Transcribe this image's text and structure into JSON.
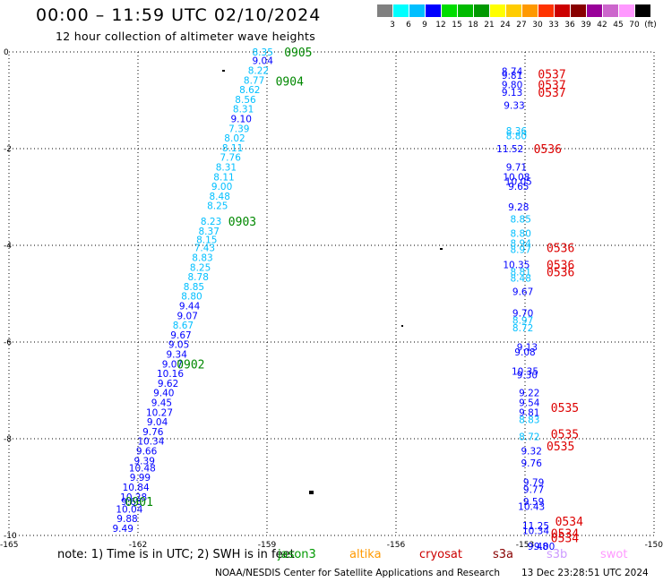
{
  "header": {
    "title": "00:00 – 11:59 UTC 02/10/2024",
    "subtitle": "12 hour collection of altimeter wave heights"
  },
  "legend": {
    "colors": [
      "#808080",
      "#00ffff",
      "#00bfff",
      "#0000ff",
      "#00dd00",
      "#00bb00",
      "#009900",
      "#ffff00",
      "#ffcc00",
      "#ff9900",
      "#ff3300",
      "#cc0000",
      "#880000",
      "#990099",
      "#cc66cc",
      "#ff99ff",
      "#000000"
    ],
    "labels": [
      "3",
      "6",
      "9",
      "12",
      "15",
      "18",
      "21",
      "24",
      "27",
      "30",
      "33",
      "36",
      "39",
      "42",
      "45",
      "70",
      "(ft)"
    ]
  },
  "axes": {
    "lon_ticks": [
      "-165",
      "-162",
      "-159",
      "-156",
      "-153",
      "-150"
    ],
    "lat_ticks": [
      "0",
      "-2",
      "-4",
      "-6",
      "-8",
      "-10"
    ]
  },
  "chart_data": {
    "type": "scatter",
    "x_range": [
      -165,
      -150
    ],
    "y_range": [
      -10,
      0
    ],
    "passes": [
      {
        "label": "0905",
        "lon": -158.6,
        "lat": 0.0
      },
      {
        "label": "0904",
        "lon": -158.8,
        "lat": -0.6
      },
      {
        "label": "0903",
        "lon": -159.9,
        "lat": -3.5
      },
      {
        "label": "0902",
        "lon": -161.1,
        "lat": -6.45
      },
      {
        "label": "0901",
        "lon": -162.3,
        "lat": -9.3
      },
      {
        "label": "0537",
        "lon": -152.7,
        "lat": -0.45
      },
      {
        "label": "0537",
        "lon": -152.7,
        "lat": -0.68
      },
      {
        "label": "0537",
        "lon": -152.7,
        "lat": -0.83
      },
      {
        "label": "0536",
        "lon": -152.8,
        "lat": -2.0
      },
      {
        "label": "0536",
        "lon": -152.5,
        "lat": -4.05
      },
      {
        "label": "0536",
        "lon": -152.5,
        "lat": -4.4
      },
      {
        "label": "0536",
        "lon": -152.5,
        "lat": -4.55
      },
      {
        "label": "0535",
        "lon": -152.4,
        "lat": -7.35
      },
      {
        "label": "0535",
        "lon": -152.4,
        "lat": -7.9
      },
      {
        "label": "0535",
        "lon": -152.5,
        "lat": -8.15
      },
      {
        "label": "0534",
        "lon": -152.3,
        "lat": -9.7
      },
      {
        "label": "0534",
        "lon": -152.4,
        "lat": -9.95
      },
      {
        "label": "0534",
        "lon": -152.4,
        "lat": -10.05
      }
    ],
    "swh": [
      {
        "v": "8.35",
        "lon": -159.1,
        "lat": 0.0,
        "c": "#00bfff"
      },
      {
        "v": "9.04",
        "lon": -159.1,
        "lat": -0.18,
        "c": "#0000ff"
      },
      {
        "v": "8.22",
        "lon": -159.2,
        "lat": -0.38,
        "c": "#00bfff"
      },
      {
        "v": "8.77",
        "lon": -159.3,
        "lat": -0.58,
        "c": "#00bfff"
      },
      {
        "v": "8.62",
        "lon": -159.4,
        "lat": -0.78,
        "c": "#00bfff"
      },
      {
        "v": "8.56",
        "lon": -159.5,
        "lat": -0.98,
        "c": "#00bfff"
      },
      {
        "v": "8.31",
        "lon": -159.55,
        "lat": -1.18,
        "c": "#00bfff"
      },
      {
        "v": "9.10",
        "lon": -159.6,
        "lat": -1.38,
        "c": "#0000ff"
      },
      {
        "v": "7.39",
        "lon": -159.65,
        "lat": -1.58,
        "c": "#00bfff"
      },
      {
        "v": "8.02",
        "lon": -159.75,
        "lat": -1.78,
        "c": "#00bfff"
      },
      {
        "v": "8.11",
        "lon": -159.8,
        "lat": -1.98,
        "c": "#00bfff"
      },
      {
        "v": "7.76",
        "lon": -159.85,
        "lat": -2.18,
        "c": "#00bfff"
      },
      {
        "v": "8.31",
        "lon": -159.95,
        "lat": -2.38,
        "c": "#00bfff"
      },
      {
        "v": "8.11",
        "lon": -160.0,
        "lat": -2.58,
        "c": "#00bfff"
      },
      {
        "v": "9.00",
        "lon": -160.05,
        "lat": -2.78,
        "c": "#00bfff"
      },
      {
        "v": "8.48",
        "lon": -160.1,
        "lat": -2.98,
        "c": "#00bfff"
      },
      {
        "v": "8.25",
        "lon": -160.15,
        "lat": -3.18,
        "c": "#00bfff"
      },
      {
        "v": "8.23",
        "lon": -160.3,
        "lat": -3.5,
        "c": "#00bfff"
      },
      {
        "v": "8.37",
        "lon": -160.35,
        "lat": -3.7,
        "c": "#00bfff"
      },
      {
        "v": "8.15",
        "lon": -160.4,
        "lat": -3.88,
        "c": "#00bfff"
      },
      {
        "v": "7.43",
        "lon": -160.45,
        "lat": -4.05,
        "c": "#00bfff"
      },
      {
        "v": "8.83",
        "lon": -160.5,
        "lat": -4.25,
        "c": "#00bfff"
      },
      {
        "v": "8.25",
        "lon": -160.55,
        "lat": -4.45,
        "c": "#00bfff"
      },
      {
        "v": "8.78",
        "lon": -160.6,
        "lat": -4.65,
        "c": "#00bfff"
      },
      {
        "v": "8.85",
        "lon": -160.7,
        "lat": -4.85,
        "c": "#00bfff"
      },
      {
        "v": "8.80",
        "lon": -160.75,
        "lat": -5.05,
        "c": "#00bfff"
      },
      {
        "v": "9.44",
        "lon": -160.8,
        "lat": -5.25,
        "c": "#0000ff"
      },
      {
        "v": "9.07",
        "lon": -160.85,
        "lat": -5.45,
        "c": "#0000ff"
      },
      {
        "v": "8.67",
        "lon": -160.95,
        "lat": -5.65,
        "c": "#00bfff"
      },
      {
        "v": "9.67",
        "lon": -161.0,
        "lat": -5.85,
        "c": "#0000ff"
      },
      {
        "v": "9.05",
        "lon": -161.05,
        "lat": -6.05,
        "c": "#0000ff"
      },
      {
        "v": "9.34",
        "lon": -161.1,
        "lat": -6.25,
        "c": "#0000ff"
      },
      {
        "v": "9.07",
        "lon": -161.2,
        "lat": -6.45,
        "c": "#0000ff"
      },
      {
        "v": "10.16",
        "lon": -161.25,
        "lat": -6.65,
        "c": "#0000ff"
      },
      {
        "v": "9.62",
        "lon": -161.3,
        "lat": -6.85,
        "c": "#0000ff"
      },
      {
        "v": "9.40",
        "lon": -161.4,
        "lat": -7.05,
        "c": "#0000ff"
      },
      {
        "v": "9.45",
        "lon": -161.45,
        "lat": -7.25,
        "c": "#0000ff"
      },
      {
        "v": "10.27",
        "lon": -161.5,
        "lat": -7.45,
        "c": "#0000ff"
      },
      {
        "v": "9.04",
        "lon": -161.55,
        "lat": -7.65,
        "c": "#0000ff"
      },
      {
        "v": "9.76",
        "lon": -161.65,
        "lat": -7.85,
        "c": "#0000ff"
      },
      {
        "v": "10.34",
        "lon": -161.7,
        "lat": -8.05,
        "c": "#0000ff"
      },
      {
        "v": "9.66",
        "lon": -161.8,
        "lat": -8.25,
        "c": "#0000ff"
      },
      {
        "v": "9.39",
        "lon": -161.85,
        "lat": -8.45,
        "c": "#0000ff"
      },
      {
        "v": "10.48",
        "lon": -161.9,
        "lat": -8.6,
        "c": "#0000ff"
      },
      {
        "v": "9.99",
        "lon": -161.95,
        "lat": -8.8,
        "c": "#0000ff"
      },
      {
        "v": "10.84",
        "lon": -162.05,
        "lat": -9.0,
        "c": "#0000ff"
      },
      {
        "v": "10.28",
        "lon": -162.1,
        "lat": -9.2,
        "c": "#0000ff"
      },
      {
        "v": "9.63",
        "lon": -162.15,
        "lat": -9.3,
        "c": "#0000ff"
      },
      {
        "v": "10.04",
        "lon": -162.2,
        "lat": -9.45,
        "c": "#0000ff"
      },
      {
        "v": "9.88",
        "lon": -162.25,
        "lat": -9.65,
        "c": "#0000ff"
      },
      {
        "v": "9.49",
        "lon": -162.35,
        "lat": -9.85,
        "c": "#0000ff"
      },
      {
        "v": "8.74",
        "lon": -153.3,
        "lat": -0.4,
        "c": "#0000ff"
      },
      {
        "v": "9.81",
        "lon": -153.3,
        "lat": -0.48,
        "c": "#0000ff"
      },
      {
        "v": "9.80",
        "lon": -153.3,
        "lat": -0.68,
        "c": "#0000ff"
      },
      {
        "v": "9.13",
        "lon": -153.3,
        "lat": -0.83,
        "c": "#0000ff"
      },
      {
        "v": "9.33",
        "lon": -153.25,
        "lat": -1.1,
        "c": "#0000ff"
      },
      {
        "v": "8.36",
        "lon": -153.2,
        "lat": -1.63,
        "c": "#00bfff"
      },
      {
        "v": "8.80",
        "lon": -153.2,
        "lat": -1.73,
        "c": "#00bfff"
      },
      {
        "v": "11.52",
        "lon": -153.35,
        "lat": -2.0,
        "c": "#0000ff"
      },
      {
        "v": "9.71",
        "lon": -153.2,
        "lat": -2.38,
        "c": "#0000ff"
      },
      {
        "v": "10.08",
        "lon": -153.2,
        "lat": -2.58,
        "c": "#0000ff"
      },
      {
        "v": "10.05",
        "lon": -153.15,
        "lat": -2.68,
        "c": "#0000ff"
      },
      {
        "v": "9.65",
        "lon": -153.15,
        "lat": -2.78,
        "c": "#0000ff"
      },
      {
        "v": "9.28",
        "lon": -153.15,
        "lat": -3.2,
        "c": "#0000ff"
      },
      {
        "v": "8.85",
        "lon": -153.1,
        "lat": -3.45,
        "c": "#00bfff"
      },
      {
        "v": "8.80",
        "lon": -153.1,
        "lat": -3.75,
        "c": "#00bfff"
      },
      {
        "v": "8.94",
        "lon": -153.1,
        "lat": -3.95,
        "c": "#00bfff"
      },
      {
        "v": "8.97",
        "lon": -153.1,
        "lat": -4.08,
        "c": "#00bfff"
      },
      {
        "v": "10.35",
        "lon": -153.2,
        "lat": -4.4,
        "c": "#0000ff"
      },
      {
        "v": "8.81",
        "lon": -153.1,
        "lat": -4.55,
        "c": "#00bfff"
      },
      {
        "v": "8.48",
        "lon": -153.1,
        "lat": -4.68,
        "c": "#00bfff"
      },
      {
        "v": "9.67",
        "lon": -153.05,
        "lat": -4.95,
        "c": "#0000ff"
      },
      {
        "v": "9.70",
        "lon": -153.05,
        "lat": -5.4,
        "c": "#0000ff"
      },
      {
        "v": "8.97",
        "lon": -153.05,
        "lat": -5.55,
        "c": "#00bfff"
      },
      {
        "v": "8.72",
        "lon": -153.05,
        "lat": -5.7,
        "c": "#00bfff"
      },
      {
        "v": "9.13",
        "lon": -152.95,
        "lat": -6.1,
        "c": "#0000ff"
      },
      {
        "v": "9.08",
        "lon": -153.0,
        "lat": -6.2,
        "c": "#0000ff"
      },
      {
        "v": "10.35",
        "lon": -153.0,
        "lat": -6.6,
        "c": "#0000ff"
      },
      {
        "v": "9.30",
        "lon": -152.95,
        "lat": -6.68,
        "c": "#0000ff"
      },
      {
        "v": "9.22",
        "lon": -152.9,
        "lat": -7.05,
        "c": "#0000ff"
      },
      {
        "v": "9.54",
        "lon": -152.9,
        "lat": -7.25,
        "c": "#0000ff"
      },
      {
        "v": "9.81",
        "lon": -152.9,
        "lat": -7.45,
        "c": "#0000ff"
      },
      {
        "v": "8.83",
        "lon": -152.9,
        "lat": -7.6,
        "c": "#00bfff"
      },
      {
        "v": "8.72",
        "lon": -152.9,
        "lat": -7.95,
        "c": "#00bfff"
      },
      {
        "v": "9.32",
        "lon": -152.85,
        "lat": -8.25,
        "c": "#0000ff"
      },
      {
        "v": "9.76",
        "lon": -152.85,
        "lat": -8.5,
        "c": "#0000ff"
      },
      {
        "v": "9.79",
        "lon": -152.8,
        "lat": -8.9,
        "c": "#0000ff"
      },
      {
        "v": "9.77",
        "lon": -152.8,
        "lat": -9.05,
        "c": "#0000ff"
      },
      {
        "v": "9.59",
        "lon": -152.8,
        "lat": -9.3,
        "c": "#0000ff"
      },
      {
        "v": "10.43",
        "lon": -152.85,
        "lat": -9.4,
        "c": "#0000ff"
      },
      {
        "v": "11.25",
        "lon": -152.75,
        "lat": -9.8,
        "c": "#0000ff"
      },
      {
        "v": "10.34",
        "lon": -152.75,
        "lat": -9.9,
        "c": "#0000ff"
      },
      {
        "v": "9.48",
        "lon": -152.7,
        "lat": -10.22,
        "c": "#0000ff"
      },
      {
        "v": "9.00",
        "lon": -152.55,
        "lat": -10.22,
        "c": "#0000ff"
      }
    ]
  },
  "footer": {
    "note": "note:  1) Time is in UTC; 2) SWH is in feet",
    "satellites": [
      {
        "name": "jason3",
        "color": "#009900"
      },
      {
        "name": "altika",
        "color": "#ff9900"
      },
      {
        "name": "cryosat",
        "color": "#cc0000"
      },
      {
        "name": "s3a",
        "color": "#880000"
      },
      {
        "name": "s3b",
        "color": "#cc99ff"
      },
      {
        "name": "swot",
        "color": "#ff99ff"
      }
    ],
    "credit": "NOAA/NESDIS Center for Satellite Applications and Research",
    "timestamp": "13 Dec 23:28:51 UTC 2024"
  }
}
